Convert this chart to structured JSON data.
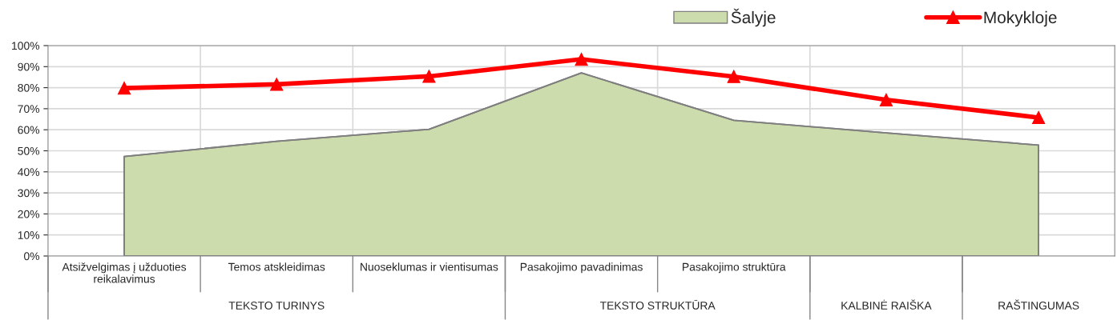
{
  "chart_data": {
    "type": "area",
    "categories": [
      "Atsižvelgimas į užduoties reikalavimus",
      "Temos atskleidimas",
      "Nuoseklumas ir vientisumas",
      "Pasakojimo pavadinimas",
      "Pasakojimo struktūra",
      null,
      null
    ],
    "series": [
      {
        "name": "Šalyje",
        "color": "#cddcac",
        "values": [
          47.3,
          54.5,
          60.2,
          87,
          64.5,
          58.5,
          52.7
        ]
      },
      {
        "name": "Mokykloje",
        "type": "line",
        "color": "#ff0000",
        "marker": "triangle",
        "values": [
          79.8,
          81.6,
          85.4,
          93.5,
          85.3,
          74.2,
          65.8
        ]
      }
    ],
    "annotations": [
      "TEKSTO TURINYS",
      "TEKSTO STRUKTŪRA",
      "KALBINĖ RAIŠKA",
      "RAŠTINGUMAS"
    ],
    "ylim": [
      0,
      100
    ],
    "yticks": [
      {
        "value": 0,
        "label": "0%"
      },
      {
        "value": 10,
        "label": "10%"
      },
      {
        "value": 20,
        "label": "20%"
      },
      {
        "value": 30,
        "label": "30%"
      },
      {
        "value": 40,
        "label": "40%"
      },
      {
        "value": 50,
        "label": "50%"
      },
      {
        "value": 60,
        "label": "60%"
      },
      {
        "value": 70,
        "label": "70%"
      },
      {
        "value": 80,
        "label": "80%"
      },
      {
        "value": 90,
        "label": "90%"
      },
      {
        "value": 100,
        "label": "100%"
      }
    ],
    "grid": true,
    "legend": "top right"
  }
}
